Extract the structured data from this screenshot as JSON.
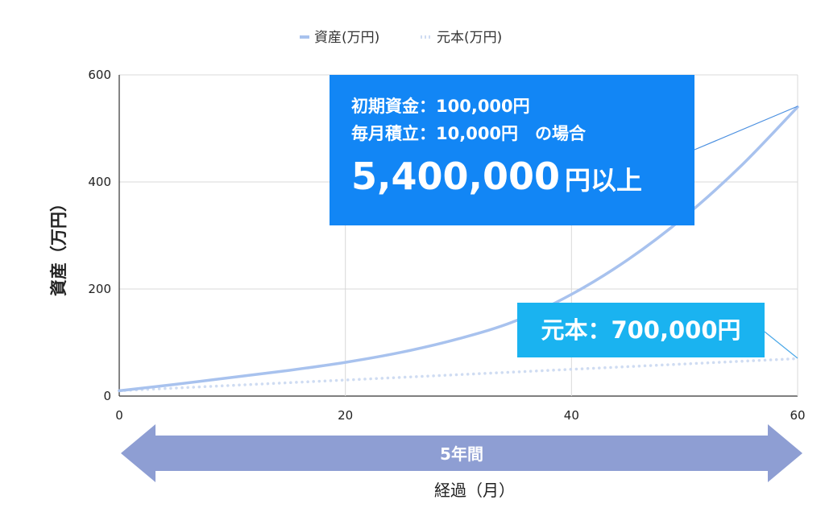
{
  "chart_data": {
    "type": "line",
    "legend_position": "top-center",
    "grid": true,
    "xlabel": "経過（月）",
    "ylabel": "資産（万円）",
    "xlim": [
      0,
      60
    ],
    "ylim": [
      0,
      600
    ],
    "x_ticks": [
      "0",
      "20",
      "40",
      "60"
    ],
    "y_ticks": [
      "0",
      "200",
      "400",
      "600"
    ],
    "x": [
      0,
      5,
      10,
      15,
      20,
      25,
      30,
      35,
      40,
      45,
      50,
      55,
      60
    ],
    "series": [
      {
        "name": "資産(万円)",
        "style": "solid",
        "color": "#a8c2ee",
        "values": [
          10,
          22,
          35,
          48,
          63,
          82,
          107,
          140,
          190,
          255,
          335,
          430,
          540
        ]
      },
      {
        "name": "元本(万円)",
        "style": "dotted",
        "color": "#cfdcf2",
        "values": [
          10,
          15,
          20,
          25,
          30,
          35,
          40,
          45,
          50,
          55,
          60,
          65,
          70
        ]
      }
    ],
    "annotations": {
      "main": {
        "line1": "初期資金：100,000円",
        "line2": "毎月積立：10,000円　の場合",
        "amount": "5,400,000",
        "amount_suffix": "円以上",
        "color": "#1286f5"
      },
      "principal": {
        "text": "元本：700,000円",
        "color": "#1ab3f0"
      }
    },
    "period_arrow": {
      "label": "5年間",
      "color": "#8e9ed3"
    }
  }
}
